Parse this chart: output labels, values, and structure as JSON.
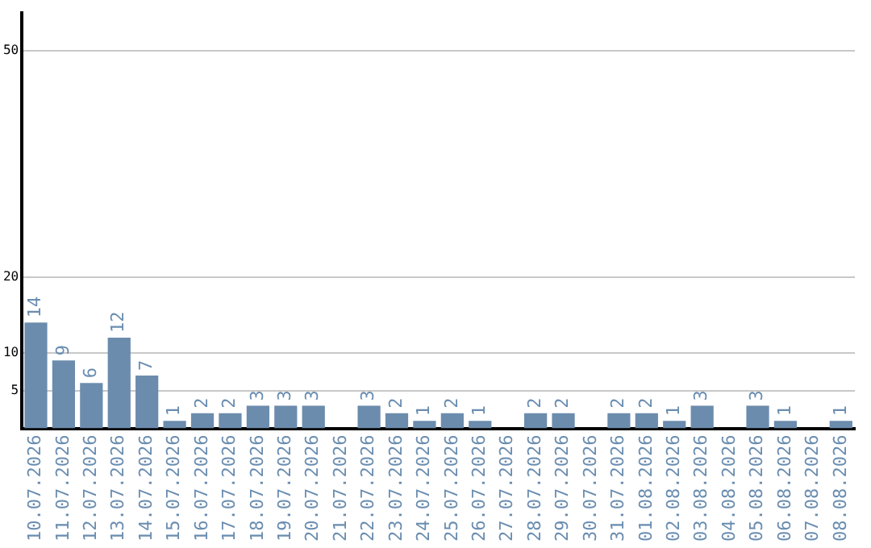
{
  "chart_data": {
    "type": "bar",
    "categories": [
      "10.07.2026",
      "11.07.2026",
      "12.07.2026",
      "13.07.2026",
      "14.07.2026",
      "15.07.2026",
      "16.07.2026",
      "17.07.2026",
      "18.07.2026",
      "19.07.2026",
      "20.07.2026",
      "21.07.2026",
      "22.07.2026",
      "23.07.2026",
      "24.07.2026",
      "25.07.2026",
      "26.07.2026",
      "27.07.2026",
      "28.07.2026",
      "29.07.2026",
      "30.07.2026",
      "31.07.2026",
      "01.08.2026",
      "02.08.2026",
      "03.08.2026",
      "04.08.2026",
      "05.08.2026",
      "06.08.2026",
      "07.08.2026",
      "08.08.2026"
    ],
    "values": [
      14,
      9,
      6,
      12,
      7,
      1,
      2,
      2,
      3,
      3,
      3,
      null,
      3,
      2,
      1,
      2,
      1,
      null,
      2,
      2,
      null,
      2,
      2,
      1,
      3,
      null,
      3,
      1,
      null,
      1
    ],
    "color": "#6b8cad",
    "ylim": [
      0,
      55
    ],
    "yticks": [
      5,
      10,
      20,
      50
    ],
    "grid": "y",
    "data_labels": true,
    "legend": false
  }
}
